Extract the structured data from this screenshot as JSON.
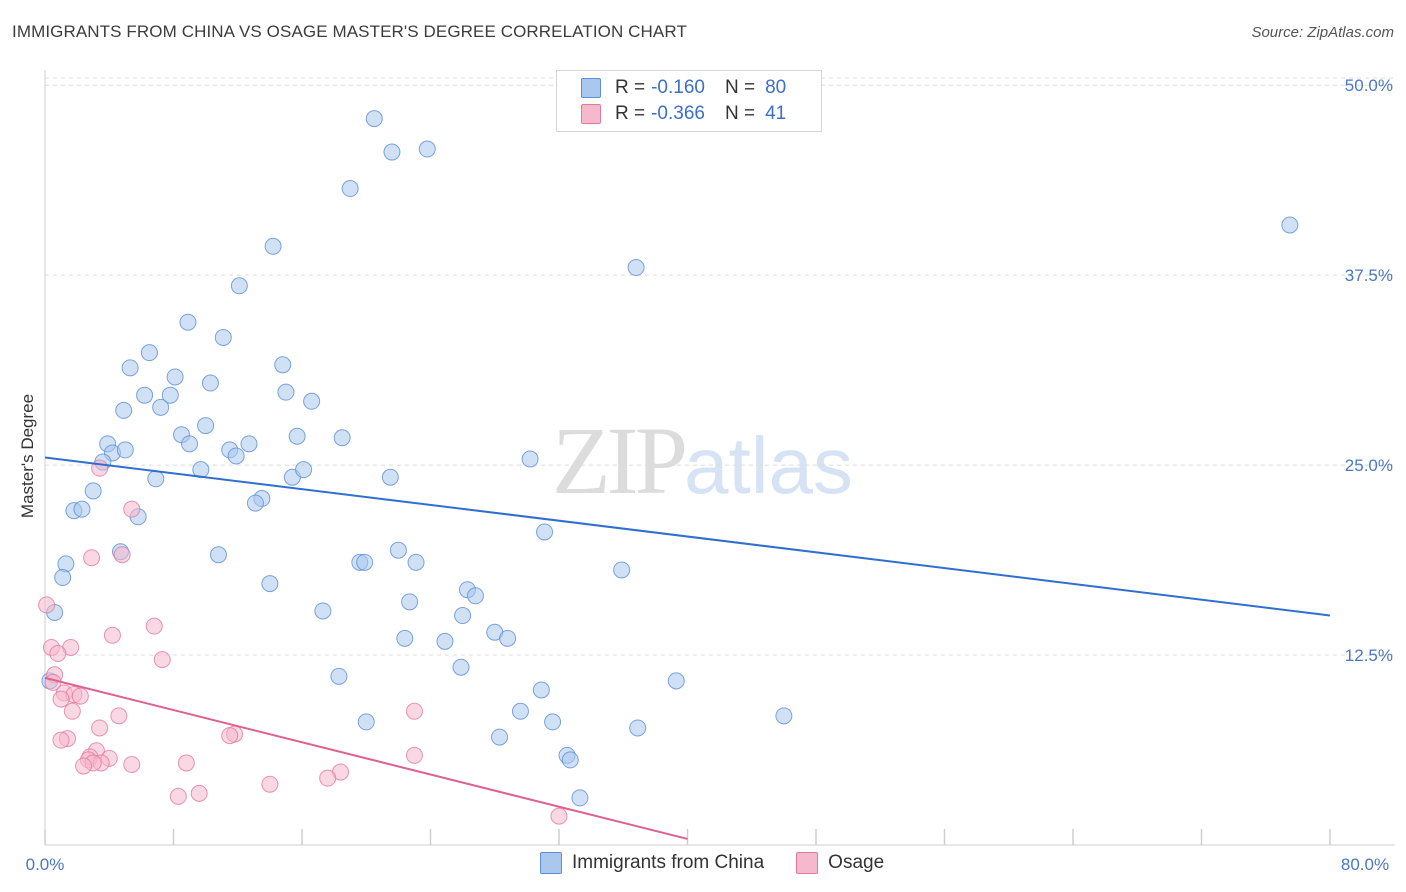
{
  "header": {
    "title": "IMMIGRANTS FROM CHINA VS OSAGE MASTER'S DEGREE CORRELATION CHART",
    "source": "Source: ZipAtlas.com"
  },
  "watermark": {
    "zip": "ZIP",
    "atlas": "atlas"
  },
  "colors": {
    "china_fill": "#aac8ee",
    "china_stroke": "#5b8fd6",
    "china_line": "#2f6fd0",
    "osage_fill": "#f6b8cc",
    "osage_stroke": "#e27aa0",
    "osage_line": "#e0608e",
    "grid": "#dcdcdc",
    "tick": "#4a78c4"
  },
  "legend": {
    "rows": [
      {
        "r_label": "R =",
        "r_value": "-0.160",
        "n_label": "N =",
        "n_value": "80"
      },
      {
        "r_label": "R =",
        "r_value": "-0.366",
        "n_label": "N =",
        "n_value": "41"
      }
    ],
    "bottom": [
      "Immigrants from China",
      "Osage"
    ]
  },
  "chart_data": {
    "type": "scatter",
    "title": "IMMIGRANTS FROM CHINA VS OSAGE MASTER'S DEGREE CORRELATION CHART",
    "ylabel": "Master's Degree",
    "xlabel": "",
    "xlim": [
      0,
      80
    ],
    "ylim": [
      0,
      51
    ],
    "y_ticks": [
      12.5,
      25.0,
      37.5,
      50.0
    ],
    "y_tick_labels": [
      "12.5%",
      "25.0%",
      "37.5%",
      "50.0%"
    ],
    "x_tick_labels": [
      "0.0%",
      "80.0%"
    ],
    "grid": true,
    "series": [
      {
        "name": "Immigrants from China",
        "trend": {
          "x": [
            0,
            80
          ],
          "y": [
            25.5,
            15.1
          ]
        },
        "points": [
          [
            20.5,
            47.8
          ],
          [
            21.6,
            45.6
          ],
          [
            23.8,
            45.8
          ],
          [
            19.0,
            43.2
          ],
          [
            77.5,
            40.8
          ],
          [
            14.2,
            39.4
          ],
          [
            36.8,
            38.0
          ],
          [
            12.1,
            36.8
          ],
          [
            8.9,
            34.4
          ],
          [
            11.1,
            33.4
          ],
          [
            6.5,
            32.4
          ],
          [
            5.3,
            31.4
          ],
          [
            8.1,
            30.8
          ],
          [
            14.8,
            31.6
          ],
          [
            10.3,
            30.4
          ],
          [
            6.2,
            29.6
          ],
          [
            7.8,
            29.6
          ],
          [
            15.0,
            29.8
          ],
          [
            16.6,
            29.2
          ],
          [
            4.9,
            28.6
          ],
          [
            7.2,
            28.8
          ],
          [
            10.0,
            27.6
          ],
          [
            3.9,
            26.4
          ],
          [
            8.5,
            27.0
          ],
          [
            9.0,
            26.4
          ],
          [
            11.5,
            26.0
          ],
          [
            12.7,
            26.4
          ],
          [
            15.7,
            26.9
          ],
          [
            18.5,
            26.8
          ],
          [
            4.2,
            25.8
          ],
          [
            5.0,
            26.0
          ],
          [
            11.9,
            25.6
          ],
          [
            30.2,
            25.4
          ],
          [
            3.6,
            25.2
          ],
          [
            6.9,
            24.1
          ],
          [
            9.7,
            24.7
          ],
          [
            15.4,
            24.2
          ],
          [
            16.1,
            24.7
          ],
          [
            21.5,
            24.2
          ],
          [
            3.0,
            23.3
          ],
          [
            13.5,
            22.8
          ],
          [
            13.1,
            22.5
          ],
          [
            1.8,
            22.0
          ],
          [
            2.3,
            22.1
          ],
          [
            5.8,
            21.6
          ],
          [
            31.1,
            20.6
          ],
          [
            4.7,
            19.3
          ],
          [
            10.8,
            19.1
          ],
          [
            19.6,
            18.6
          ],
          [
            22.0,
            19.4
          ],
          [
            23.1,
            18.6
          ],
          [
            1.3,
            18.5
          ],
          [
            19.9,
            18.6
          ],
          [
            35.9,
            18.1
          ],
          [
            1.1,
            17.6
          ],
          [
            14.0,
            17.2
          ],
          [
            26.3,
            16.8
          ],
          [
            26.8,
            16.4
          ],
          [
            22.7,
            16.0
          ],
          [
            0.6,
            15.3
          ],
          [
            17.3,
            15.4
          ],
          [
            26.0,
            15.1
          ],
          [
            28.0,
            14.0
          ],
          [
            22.4,
            13.6
          ],
          [
            28.8,
            13.6
          ],
          [
            24.9,
            13.4
          ],
          [
            25.9,
            11.7
          ],
          [
            0.3,
            10.8
          ],
          [
            18.3,
            11.1
          ],
          [
            39.3,
            10.8
          ],
          [
            30.9,
            10.2
          ],
          [
            29.6,
            8.8
          ],
          [
            46.0,
            8.5
          ],
          [
            20.0,
            8.1
          ],
          [
            31.6,
            8.1
          ],
          [
            36.9,
            7.7
          ],
          [
            28.3,
            7.1
          ],
          [
            32.5,
            5.9
          ],
          [
            32.7,
            5.6
          ],
          [
            33.3,
            3.1
          ]
        ]
      },
      {
        "name": "Osage",
        "trend": {
          "x": [
            0,
            40
          ],
          "y": [
            11.0,
            0.4
          ]
        },
        "points": [
          [
            0.1,
            15.8
          ],
          [
            3.4,
            24.8
          ],
          [
            5.4,
            22.1
          ],
          [
            2.9,
            18.9
          ],
          [
            4.8,
            19.1
          ],
          [
            6.8,
            14.4
          ],
          [
            4.2,
            13.8
          ],
          [
            0.4,
            13.0
          ],
          [
            1.6,
            13.0
          ],
          [
            0.8,
            12.6
          ],
          [
            7.3,
            12.2
          ],
          [
            0.6,
            11.2
          ],
          [
            0.5,
            10.7
          ],
          [
            1.2,
            10.0
          ],
          [
            1.8,
            9.9
          ],
          [
            2.2,
            9.8
          ],
          [
            1.0,
            9.6
          ],
          [
            1.7,
            8.8
          ],
          [
            23.0,
            8.8
          ],
          [
            4.6,
            8.5
          ],
          [
            3.4,
            7.7
          ],
          [
            11.8,
            7.3
          ],
          [
            11.5,
            7.2
          ],
          [
            1.4,
            7.0
          ],
          [
            1.0,
            6.9
          ],
          [
            3.2,
            6.2
          ],
          [
            2.8,
            5.8
          ],
          [
            4.0,
            5.7
          ],
          [
            23.0,
            5.9
          ],
          [
            2.7,
            5.6
          ],
          [
            3.5,
            5.4
          ],
          [
            3.0,
            5.4
          ],
          [
            8.8,
            5.4
          ],
          [
            5.4,
            5.3
          ],
          [
            2.4,
            5.2
          ],
          [
            18.4,
            4.8
          ],
          [
            17.6,
            4.4
          ],
          [
            14.0,
            4.0
          ],
          [
            9.6,
            3.4
          ],
          [
            8.3,
            3.2
          ],
          [
            32.0,
            1.9
          ]
        ]
      }
    ]
  }
}
